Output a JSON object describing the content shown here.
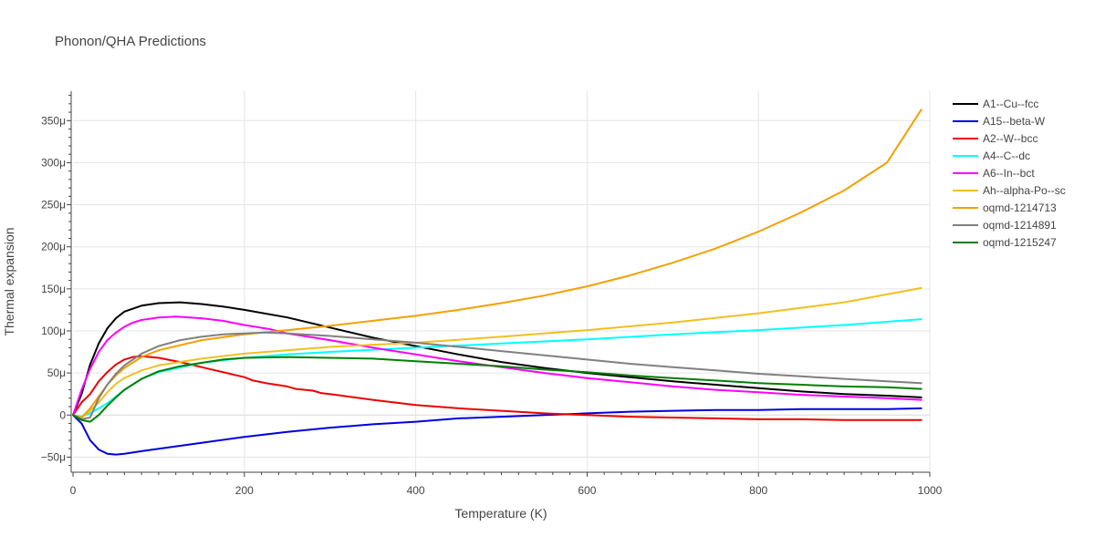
{
  "chart_data": {
    "type": "line",
    "title": "Phonon/QHA Predictions",
    "xlabel": "Temperature (K)",
    "ylabel": "Thermal expansion",
    "xlim": [
      0,
      1000
    ],
    "ylim": [
      -68,
      385
    ],
    "x_ticks": [
      0,
      200,
      400,
      600,
      800,
      1000
    ],
    "y_ticks": [
      -50,
      0,
      50,
      100,
      150,
      200,
      250,
      300,
      350
    ],
    "x_tick_labels": [
      "0",
      "200",
      "400",
      "600",
      "800",
      "1000"
    ],
    "y_tick_labels": [
      "−50μ",
      "0",
      "50μ",
      "100μ",
      "150μ",
      "200μ",
      "250μ",
      "300μ",
      "350μ"
    ],
    "grid": true,
    "legend_position": "right",
    "series": [
      {
        "name": "A1--Cu--fcc",
        "color": "#000000",
        "points": [
          [
            0,
            0
          ],
          [
            10,
            25
          ],
          [
            20,
            60
          ],
          [
            30,
            85
          ],
          [
            40,
            103
          ],
          [
            50,
            115
          ],
          [
            60,
            123
          ],
          [
            80,
            130
          ],
          [
            100,
            133
          ],
          [
            125,
            134
          ],
          [
            150,
            132
          ],
          [
            175,
            129
          ],
          [
            200,
            125
          ],
          [
            250,
            116
          ],
          [
            300,
            104
          ],
          [
            350,
            92
          ],
          [
            400,
            82
          ],
          [
            450,
            72
          ],
          [
            500,
            63
          ],
          [
            550,
            56
          ],
          [
            600,
            50
          ],
          [
            650,
            45
          ],
          [
            700,
            40
          ],
          [
            750,
            36
          ],
          [
            800,
            32
          ],
          [
            850,
            28
          ],
          [
            900,
            25
          ],
          [
            950,
            23
          ],
          [
            990,
            21
          ]
        ]
      },
      {
        "name": "A15--beta-W",
        "color": "#0000dd",
        "points": [
          [
            0,
            0
          ],
          [
            10,
            -10
          ],
          [
            20,
            -30
          ],
          [
            30,
            -41
          ],
          [
            40,
            -46
          ],
          [
            50,
            -47
          ],
          [
            60,
            -46
          ],
          [
            80,
            -43
          ],
          [
            100,
            -40
          ],
          [
            150,
            -33
          ],
          [
            200,
            -26
          ],
          [
            250,
            -20
          ],
          [
            300,
            -15
          ],
          [
            350,
            -11
          ],
          [
            400,
            -8
          ],
          [
            450,
            -4
          ],
          [
            500,
            -2
          ],
          [
            550,
            0
          ],
          [
            600,
            2
          ],
          [
            650,
            4
          ],
          [
            700,
            5
          ],
          [
            750,
            6
          ],
          [
            800,
            6
          ],
          [
            850,
            7
          ],
          [
            900,
            7
          ],
          [
            950,
            7
          ],
          [
            990,
            8
          ]
        ]
      },
      {
        "name": "A2--W--bcc",
        "color": "#ee0000",
        "points": [
          [
            0,
            0
          ],
          [
            10,
            15
          ],
          [
            20,
            25
          ],
          [
            30,
            40
          ],
          [
            40,
            51
          ],
          [
            50,
            60
          ],
          [
            60,
            66
          ],
          [
            70,
            69
          ],
          [
            80,
            70
          ],
          [
            100,
            68
          ],
          [
            125,
            63
          ],
          [
            150,
            57
          ],
          [
            175,
            51
          ],
          [
            200,
            45
          ],
          [
            210,
            41
          ],
          [
            225,
            38
          ],
          [
            250,
            34
          ],
          [
            260,
            31
          ],
          [
            280,
            29
          ],
          [
            290,
            26
          ],
          [
            300,
            25
          ],
          [
            350,
            18
          ],
          [
            400,
            12
          ],
          [
            450,
            8
          ],
          [
            500,
            5
          ],
          [
            550,
            2
          ],
          [
            600,
            0
          ],
          [
            650,
            -2
          ],
          [
            700,
            -3
          ],
          [
            750,
            -4
          ],
          [
            800,
            -5
          ],
          [
            850,
            -5
          ],
          [
            900,
            -6
          ],
          [
            950,
            -6
          ],
          [
            990,
            -6
          ]
        ]
      },
      {
        "name": "A4--C--dc",
        "color": "#00ffff",
        "points": [
          [
            0,
            0
          ],
          [
            10,
            -2
          ],
          [
            20,
            2
          ],
          [
            30,
            8
          ],
          [
            40,
            14
          ],
          [
            50,
            22
          ],
          [
            60,
            30
          ],
          [
            80,
            43
          ],
          [
            100,
            51
          ],
          [
            150,
            62
          ],
          [
            200,
            68
          ],
          [
            250,
            72
          ],
          [
            300,
            75
          ],
          [
            400,
            80
          ],
          [
            500,
            85
          ],
          [
            600,
            90
          ],
          [
            700,
            96
          ],
          [
            800,
            101
          ],
          [
            900,
            107
          ],
          [
            990,
            114
          ]
        ]
      },
      {
        "name": "A6--In--bct",
        "color": "#ff00ff",
        "points": [
          [
            0,
            0
          ],
          [
            10,
            30
          ],
          [
            20,
            55
          ],
          [
            30,
            75
          ],
          [
            40,
            89
          ],
          [
            50,
            98
          ],
          [
            60,
            105
          ],
          [
            70,
            110
          ],
          [
            80,
            113
          ],
          [
            100,
            116
          ],
          [
            120,
            117
          ],
          [
            150,
            115
          ],
          [
            175,
            112
          ],
          [
            200,
            107
          ],
          [
            230,
            102
          ],
          [
            250,
            97
          ],
          [
            300,
            89
          ],
          [
            350,
            80
          ],
          [
            400,
            72
          ],
          [
            450,
            64
          ],
          [
            500,
            57
          ],
          [
            550,
            50
          ],
          [
            600,
            44
          ],
          [
            650,
            39
          ],
          [
            700,
            34
          ],
          [
            750,
            30
          ],
          [
            800,
            27
          ],
          [
            850,
            24
          ],
          [
            900,
            22
          ],
          [
            950,
            20
          ],
          [
            990,
            18
          ]
        ]
      },
      {
        "name": "Ah--alpha-Po--sc",
        "color": "#f0c020",
        "points": [
          [
            0,
            0
          ],
          [
            10,
            -3
          ],
          [
            20,
            5
          ],
          [
            30,
            15
          ],
          [
            40,
            27
          ],
          [
            50,
            37
          ],
          [
            60,
            44
          ],
          [
            80,
            53
          ],
          [
            100,
            59
          ],
          [
            150,
            67
          ],
          [
            200,
            73
          ],
          [
            250,
            77
          ],
          [
            300,
            81
          ],
          [
            400,
            86
          ],
          [
            500,
            93
          ],
          [
            600,
            101
          ],
          [
            700,
            110
          ],
          [
            800,
            121
          ],
          [
            900,
            134
          ],
          [
            990,
            151
          ]
        ]
      },
      {
        "name": "oqmd-1214713",
        "color": "#f5a000",
        "points": [
          [
            0,
            0
          ],
          [
            10,
            -3
          ],
          [
            20,
            8
          ],
          [
            30,
            22
          ],
          [
            40,
            36
          ],
          [
            50,
            47
          ],
          [
            60,
            56
          ],
          [
            80,
            69
          ],
          [
            100,
            77
          ],
          [
            150,
            89
          ],
          [
            200,
            96
          ],
          [
            250,
            101
          ],
          [
            300,
            106
          ],
          [
            350,
            112
          ],
          [
            400,
            118
          ],
          [
            450,
            125
          ],
          [
            500,
            133
          ],
          [
            550,
            142
          ],
          [
            600,
            153
          ],
          [
            650,
            166
          ],
          [
            700,
            181
          ],
          [
            750,
            198
          ],
          [
            800,
            218
          ],
          [
            850,
            241
          ],
          [
            900,
            267
          ],
          [
            950,
            300
          ],
          [
            990,
            363
          ]
        ]
      },
      {
        "name": "oqmd-1214891",
        "color": "#808080",
        "points": [
          [
            0,
            0
          ],
          [
            10,
            -5
          ],
          [
            20,
            -3
          ],
          [
            30,
            20
          ],
          [
            40,
            36
          ],
          [
            50,
            49
          ],
          [
            60,
            59
          ],
          [
            80,
            73
          ],
          [
            100,
            82
          ],
          [
            125,
            89
          ],
          [
            150,
            93
          ],
          [
            175,
            96
          ],
          [
            200,
            97
          ],
          [
            225,
            98
          ],
          [
            250,
            97
          ],
          [
            300,
            94
          ],
          [
            350,
            90
          ],
          [
            400,
            86
          ],
          [
            450,
            81
          ],
          [
            500,
            76
          ],
          [
            550,
            71
          ],
          [
            600,
            66
          ],
          [
            650,
            61
          ],
          [
            700,
            57
          ],
          [
            750,
            53
          ],
          [
            800,
            49
          ],
          [
            850,
            46
          ],
          [
            900,
            43
          ],
          [
            950,
            40
          ],
          [
            990,
            38
          ]
        ]
      },
      {
        "name": "oqmd-1215247",
        "color": "#008000",
        "points": [
          [
            0,
            0
          ],
          [
            10,
            -6
          ],
          [
            20,
            -8
          ],
          [
            30,
            0
          ],
          [
            40,
            11
          ],
          [
            50,
            21
          ],
          [
            60,
            30
          ],
          [
            80,
            43
          ],
          [
            100,
            52
          ],
          [
            125,
            58
          ],
          [
            150,
            62
          ],
          [
            175,
            66
          ],
          [
            200,
            68
          ],
          [
            250,
            69
          ],
          [
            300,
            68
          ],
          [
            350,
            67
          ],
          [
            400,
            64
          ],
          [
            450,
            61
          ],
          [
            500,
            58
          ],
          [
            550,
            54
          ],
          [
            600,
            51
          ],
          [
            650,
            47
          ],
          [
            700,
            44
          ],
          [
            750,
            41
          ],
          [
            800,
            38
          ],
          [
            850,
            36
          ],
          [
            900,
            34
          ],
          [
            950,
            33
          ],
          [
            990,
            31
          ]
        ]
      }
    ]
  }
}
